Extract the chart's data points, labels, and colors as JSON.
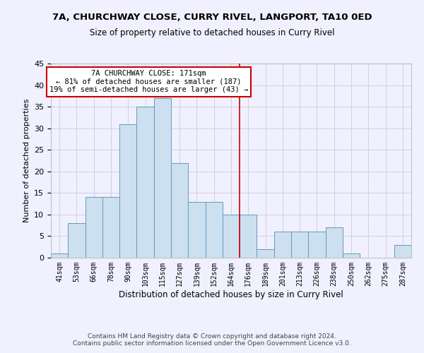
{
  "title": "7A, CHURCHWAY CLOSE, CURRY RIVEL, LANGPORT, TA10 0ED",
  "subtitle": "Size of property relative to detached houses in Curry Rivel",
  "xlabel": "Distribution of detached houses by size in Curry Rivel",
  "ylabel": "Number of detached properties",
  "categories": [
    "41sqm",
    "53sqm",
    "66sqm",
    "78sqm",
    "90sqm",
    "103sqm",
    "115sqm",
    "127sqm",
    "139sqm",
    "152sqm",
    "164sqm",
    "176sqm",
    "189sqm",
    "201sqm",
    "213sqm",
    "226sqm",
    "238sqm",
    "250sqm",
    "262sqm",
    "275sqm",
    "287sqm"
  ],
  "values": [
    1,
    8,
    14,
    14,
    31,
    35,
    37,
    22,
    13,
    13,
    10,
    10,
    2,
    6,
    6,
    6,
    7,
    1,
    0,
    0,
    3
  ],
  "bar_color": "#cce0f0",
  "bar_edge_color": "#6699bb",
  "reference_line_x": 10.5,
  "reference_line_color": "#cc0000",
  "annotation_text": "7A CHURCHWAY CLOSE: 171sqm\n← 81% of detached houses are smaller (187)\n19% of semi-detached houses are larger (43) →",
  "annotation_box_color": "#ffffff",
  "annotation_box_edge_color": "#cc0000",
  "ylim": [
    0,
    45
  ],
  "yticks": [
    0,
    5,
    10,
    15,
    20,
    25,
    30,
    35,
    40,
    45
  ],
  "footer1": "Contains HM Land Registry data © Crown copyright and database right 2024.",
  "footer2": "Contains public sector information licensed under the Open Government Licence v3.0.",
  "bg_color": "#f0f0ff",
  "grid_color": "#ccccdd"
}
